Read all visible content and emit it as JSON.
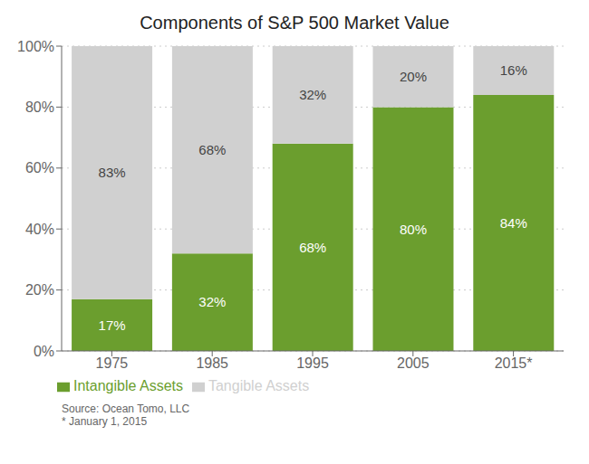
{
  "chart_data": {
    "type": "bar",
    "title": "Components of S&P 500 Market Value",
    "categories": [
      "1975",
      "1985",
      "1995",
      "2005",
      "2015*"
    ],
    "series": [
      {
        "name": "Intangible Assets",
        "color": "#6b9e2e",
        "values": [
          17,
          32,
          68,
          80,
          84
        ],
        "value_labels": [
          "17%",
          "32%",
          "68%",
          "80%",
          "84%"
        ]
      },
      {
        "name": "Tangible Assets",
        "color": "#d0d0d0",
        "values": [
          83,
          68,
          32,
          20,
          16
        ],
        "value_labels": [
          "83%",
          "68%",
          "32%",
          "20%",
          "16%"
        ]
      }
    ],
    "stacked": true,
    "data_labels": true,
    "ylim": [
      0,
      100
    ],
    "yticks": [
      {
        "value": 0,
        "label": "0%"
      },
      {
        "value": 20,
        "label": "20%"
      },
      {
        "value": 40,
        "label": "40%"
      },
      {
        "value": 60,
        "label": "60%"
      },
      {
        "value": 80,
        "label": "80%"
      },
      {
        "value": 100,
        "label": "100%"
      }
    ],
    "grid": true,
    "legend": "bottom",
    "annotations": [
      "Source: Ocean Tomo, LLC\n* January 1, 2015"
    ]
  }
}
